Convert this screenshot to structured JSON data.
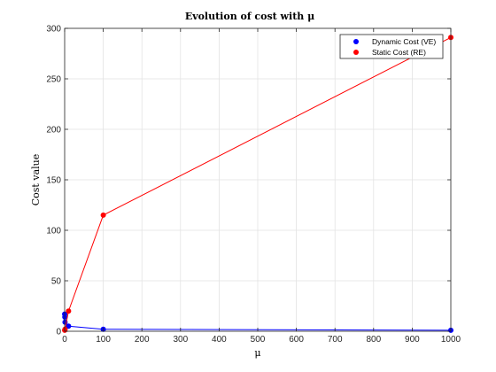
{
  "chart_data": {
    "type": "line",
    "title": "Evolution of cost with μ",
    "xlabel": "μ",
    "ylabel": "Cost value",
    "xlim": [
      0,
      1000
    ],
    "ylim": [
      0,
      300
    ],
    "xticks": [
      0,
      100,
      200,
      300,
      400,
      500,
      600,
      700,
      800,
      900,
      1000
    ],
    "yticks": [
      0,
      50,
      100,
      150,
      200,
      250,
      300
    ],
    "grid": true,
    "legend_position": "top-right",
    "series": [
      {
        "name": "Dynamic Cost (VE)",
        "color": "#0000ff",
        "x": [
          0.1,
          0.5,
          1,
          10,
          100,
          1000
        ],
        "y": [
          17,
          14,
          9,
          5,
          2,
          1
        ]
      },
      {
        "name": "Static Cost (RE)",
        "color": "#ff0000",
        "x": [
          0.1,
          1,
          10,
          100,
          1000
        ],
        "y": [
          1,
          2,
          20,
          115,
          291
        ]
      }
    ]
  }
}
